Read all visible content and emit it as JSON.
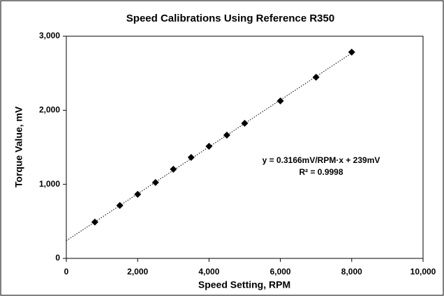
{
  "chart_data": {
    "type": "scatter",
    "title": "Speed Calibrations Using Reference R350",
    "x_label": "Speed Setting, RPM",
    "y_label": "Torque Value, mV",
    "x": [
      800,
      1500,
      2000,
      2500,
      3000,
      3500,
      4000,
      4500,
      5000,
      6000,
      7000,
      8000
    ],
    "series": [
      {
        "name": "Torque",
        "color": "#000000",
        "values": [
          490,
          715,
          865,
          1025,
          1204,
          1364,
          1514,
          1665,
          1825,
          2126,
          2446,
          2785
        ]
      }
    ],
    "trendline": {
      "slope": 0.3166,
      "intercept": 239,
      "x_range": [
        0,
        8000
      ]
    },
    "annotations": [
      "y = 0.3166mV/RPM·x + 239mV",
      "R² = 0.9998"
    ],
    "xlim": [
      0,
      10000
    ],
    "ylim": [
      0,
      3000
    ],
    "xticks": [
      0,
      {
        "value": 2000,
        "label": "2,000"
      },
      {
        "value": 4000,
        "label": "4,000"
      },
      {
        "value": 6000,
        "label": "6,000"
      },
      {
        "value": 8000,
        "label": "8,000"
      },
      {
        "value": 10000,
        "label": "10,000"
      }
    ],
    "yticks": [
      0,
      {
        "value": 1000,
        "label": "1,000"
      },
      {
        "value": 2000,
        "label": "2,000"
      },
      {
        "value": 3000,
        "label": "3,000"
      }
    ],
    "grid": false
  }
}
